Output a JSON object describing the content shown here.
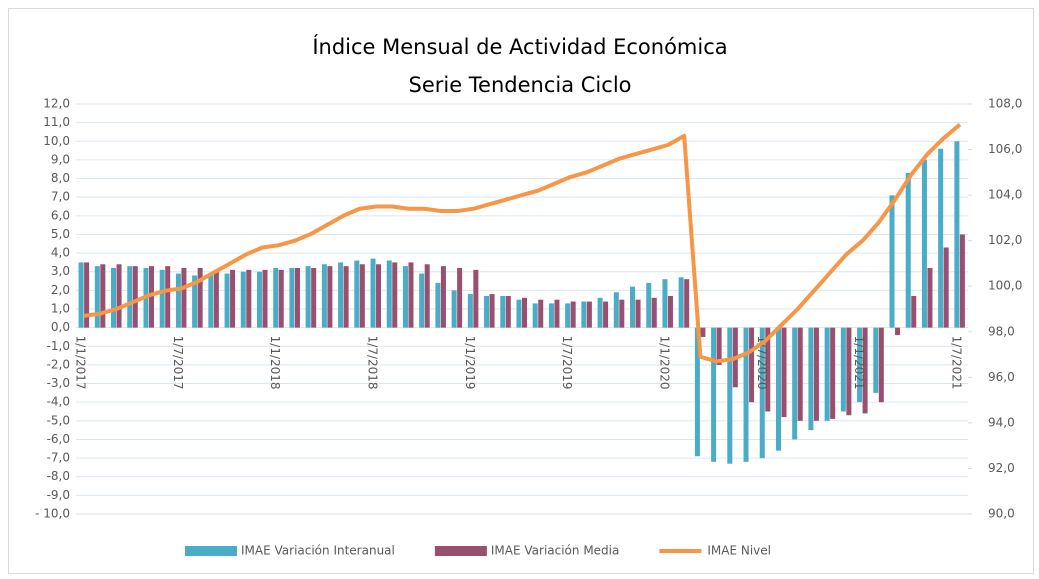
{
  "chart_data": {
    "type": "bar_line",
    "title": "Índice Mensual de Actividad Económica",
    "subtitle": "Serie Tendencia Ciclo",
    "categories": [
      "1/1/2017",
      null,
      null,
      null,
      null,
      null,
      "1/7/2017",
      null,
      null,
      null,
      null,
      null,
      "1/1/2018",
      null,
      null,
      null,
      null,
      null,
      "1/7/2018",
      null,
      null,
      null,
      null,
      null,
      "1/1/2019",
      null,
      null,
      null,
      null,
      null,
      "1/7/2019",
      null,
      null,
      null,
      null,
      null,
      "1/1/2020",
      null,
      null,
      null,
      null,
      null,
      "1/7/2020",
      null,
      null,
      null,
      null,
      null,
      "1/1/2021",
      null,
      null,
      null,
      null,
      null,
      "1/7/2021"
    ],
    "series": [
      {
        "name": "IMAE Variación Interanual",
        "type": "bar",
        "color": "#4bacc6",
        "values": [
          3.5,
          3.3,
          3.2,
          3.3,
          3.2,
          3.1,
          2.9,
          2.8,
          2.8,
          2.9,
          3.0,
          3.0,
          3.2,
          3.2,
          3.3,
          3.4,
          3.5,
          3.6,
          3.7,
          3.6,
          3.3,
          2.9,
          2.4,
          2.0,
          1.8,
          1.7,
          1.7,
          1.5,
          1.3,
          1.3,
          1.3,
          1.4,
          1.6,
          1.9,
          2.2,
          2.4,
          2.6,
          2.7,
          -6.9,
          -7.2,
          -7.3,
          -7.2,
          -7.0,
          -6.6,
          -6.0,
          -5.5,
          -5.0,
          -4.5,
          -4.0,
          -3.5,
          7.1,
          8.3,
          9.0,
          9.6,
          10.0
        ]
      },
      {
        "name": "IMAE Variación Media",
        "type": "bar",
        "color": "#9b4f6e",
        "values": [
          3.5,
          3.4,
          3.4,
          3.3,
          3.3,
          3.3,
          3.2,
          3.2,
          3.1,
          3.1,
          3.1,
          3.1,
          3.1,
          3.2,
          3.2,
          3.3,
          3.3,
          3.4,
          3.4,
          3.5,
          3.5,
          3.4,
          3.3,
          3.2,
          3.1,
          1.8,
          1.7,
          1.6,
          1.5,
          1.5,
          1.4,
          1.4,
          1.4,
          1.5,
          1.5,
          1.6,
          1.7,
          2.6,
          -0.5,
          -2.0,
          -3.2,
          -4.0,
          -4.5,
          -4.8,
          -5.0,
          -5.0,
          -4.9,
          -4.7,
          -4.6,
          -4.0,
          -0.4,
          1.7,
          3.2,
          4.3,
          5.0
        ]
      },
      {
        "name": "IMAE Nivel",
        "type": "line",
        "axis": "y2",
        "color": "#f79646",
        "values": [
          98.7,
          98.8,
          99.0,
          99.3,
          99.6,
          99.8,
          99.9,
          100.2,
          100.6,
          101.0,
          101.4,
          101.7,
          101.8,
          102.0,
          102.3,
          102.7,
          103.1,
          103.4,
          103.5,
          103.5,
          103.4,
          103.4,
          103.3,
          103.3,
          103.4,
          103.6,
          103.8,
          104.0,
          104.2,
          104.5,
          104.8,
          105.0,
          105.3,
          105.6,
          105.8,
          106.0,
          106.2,
          106.6,
          96.9,
          96.7,
          96.8,
          97.1,
          97.6,
          98.3,
          99.0,
          99.8,
          100.6,
          101.4,
          102.0,
          102.8,
          103.8,
          104.9,
          105.8,
          106.5,
          107.1
        ]
      }
    ],
    "ylim": [
      -10,
      12
    ],
    "yticks": [
      {
        "value": 12,
        "label": "12,0"
      },
      {
        "value": 11,
        "label": "11,0"
      },
      {
        "value": 10,
        "label": "10,0"
      },
      {
        "value": 9,
        "label": "9,0"
      },
      {
        "value": 8,
        "label": "8,0"
      },
      {
        "value": 7,
        "label": "7,0"
      },
      {
        "value": 6,
        "label": "6,0"
      },
      {
        "value": 5,
        "label": "5,0"
      },
      {
        "value": 4,
        "label": "4,0"
      },
      {
        "value": 3,
        "label": "3,0"
      },
      {
        "value": 2,
        "label": "2,0"
      },
      {
        "value": 1,
        "label": "1,0"
      },
      {
        "value": 0,
        "label": "0,0"
      },
      {
        "value": -1,
        "label": "-1,0"
      },
      {
        "value": -2,
        "label": "-2,0"
      },
      {
        "value": -3,
        "label": "-3,0"
      },
      {
        "value": -4,
        "label": "-4,0"
      },
      {
        "value": -5,
        "label": "-5,0"
      },
      {
        "value": -6,
        "label": "-6,0"
      },
      {
        "value": -7,
        "label": "-7,0"
      },
      {
        "value": -8,
        "label": "-8,0"
      },
      {
        "value": -9,
        "label": "-9,0"
      },
      {
        "value": -10,
        "label": "- 10,0"
      }
    ],
    "y2lim": [
      90,
      108
    ],
    "y2ticks": [
      {
        "value": 108,
        "label": "108,0"
      },
      {
        "value": 106,
        "label": "106,0"
      },
      {
        "value": 104,
        "label": "104,0"
      },
      {
        "value": 102,
        "label": "102,0"
      },
      {
        "value": 100,
        "label": "100,0"
      },
      {
        "value": 98,
        "label": "98,0"
      },
      {
        "value": 96,
        "label": "96,0"
      },
      {
        "value": 94,
        "label": "94,0"
      },
      {
        "value": 92,
        "label": "92,0"
      },
      {
        "value": 90,
        "label": "90,0"
      }
    ],
    "grid": true,
    "legend": "bottom"
  }
}
